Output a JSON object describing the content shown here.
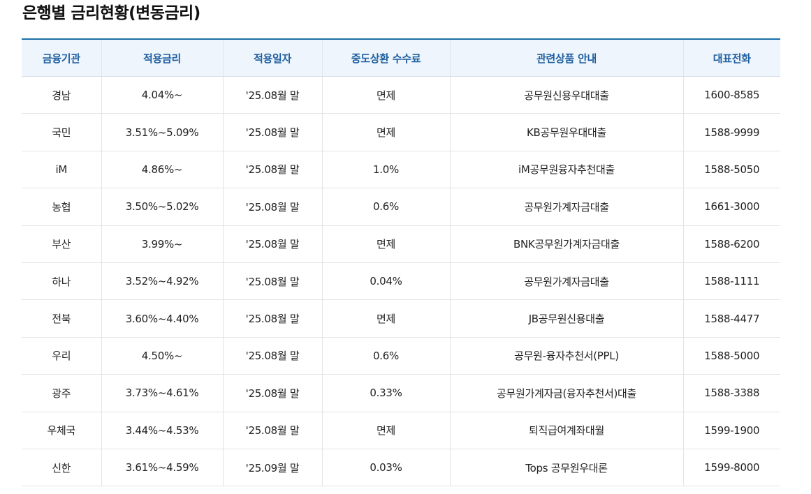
{
  "page": {
    "title": "은행별 금리현황(변동금리)"
  },
  "table": {
    "headers": {
      "bank": "금융기관",
      "rate": "적용금리",
      "date": "적용일자",
      "fee": "중도상환 수수료",
      "product": "관련상품 안내",
      "phone": "대표전화"
    },
    "rows": [
      {
        "bank": "경남",
        "rate": "4.04%~",
        "date": "'25.08월 말",
        "fee": "면제",
        "product": "공무원신용우대대출",
        "phone": "1600-8585"
      },
      {
        "bank": "국민",
        "rate": "3.51%~5.09%",
        "date": "'25.08월 말",
        "fee": "면제",
        "product": "KB공무원우대대출",
        "phone": "1588-9999"
      },
      {
        "bank": "iM",
        "rate": "4.86%~",
        "date": "'25.08월 말",
        "fee": "1.0%",
        "product": "iM공무원융자추천대출",
        "phone": "1588-5050"
      },
      {
        "bank": "농협",
        "rate": "3.50%~5.02%",
        "date": "'25.08월 말",
        "fee": "0.6%",
        "product": "공무원가계자금대출",
        "phone": "1661-3000"
      },
      {
        "bank": "부산",
        "rate": "3.99%~",
        "date": "'25.08월 말",
        "fee": "면제",
        "product": "BNK공무원가계자금대출",
        "phone": "1588-6200"
      },
      {
        "bank": "하나",
        "rate": "3.52%~4.92%",
        "date": "'25.08월 말",
        "fee": "0.04%",
        "product": "공무원가계자금대출",
        "phone": "1588-1111"
      },
      {
        "bank": "전북",
        "rate": "3.60%~4.40%",
        "date": "'25.08월 말",
        "fee": "면제",
        "product": "JB공무원신용대출",
        "phone": "1588-4477"
      },
      {
        "bank": "우리",
        "rate": "4.50%~",
        "date": "'25.08월 말",
        "fee": "0.6%",
        "product": "공무원-융자추천서(PPL)",
        "phone": "1588-5000"
      },
      {
        "bank": "광주",
        "rate": "3.73%~4.61%",
        "date": "'25.08월 말",
        "fee": "0.33%",
        "product": "공무원가계자금(융자추천서)대출",
        "phone": "1588-3388"
      },
      {
        "bank": "우체국",
        "rate": "3.44%~4.53%",
        "date": "'25.08월 말",
        "fee": "면제",
        "product": "퇴직급여계좌대월",
        "phone": "1599-1900"
      },
      {
        "bank": "신한",
        "rate": "3.61%~4.59%",
        "date": "'25.09월 말",
        "fee": "0.03%",
        "product": "Tops 공무원우대론",
        "phone": "1599-8000"
      }
    ]
  },
  "colors": {
    "header_text": "#1f5fa0",
    "header_bg": "#eef5fc",
    "top_border": "#1b6fa8"
  }
}
